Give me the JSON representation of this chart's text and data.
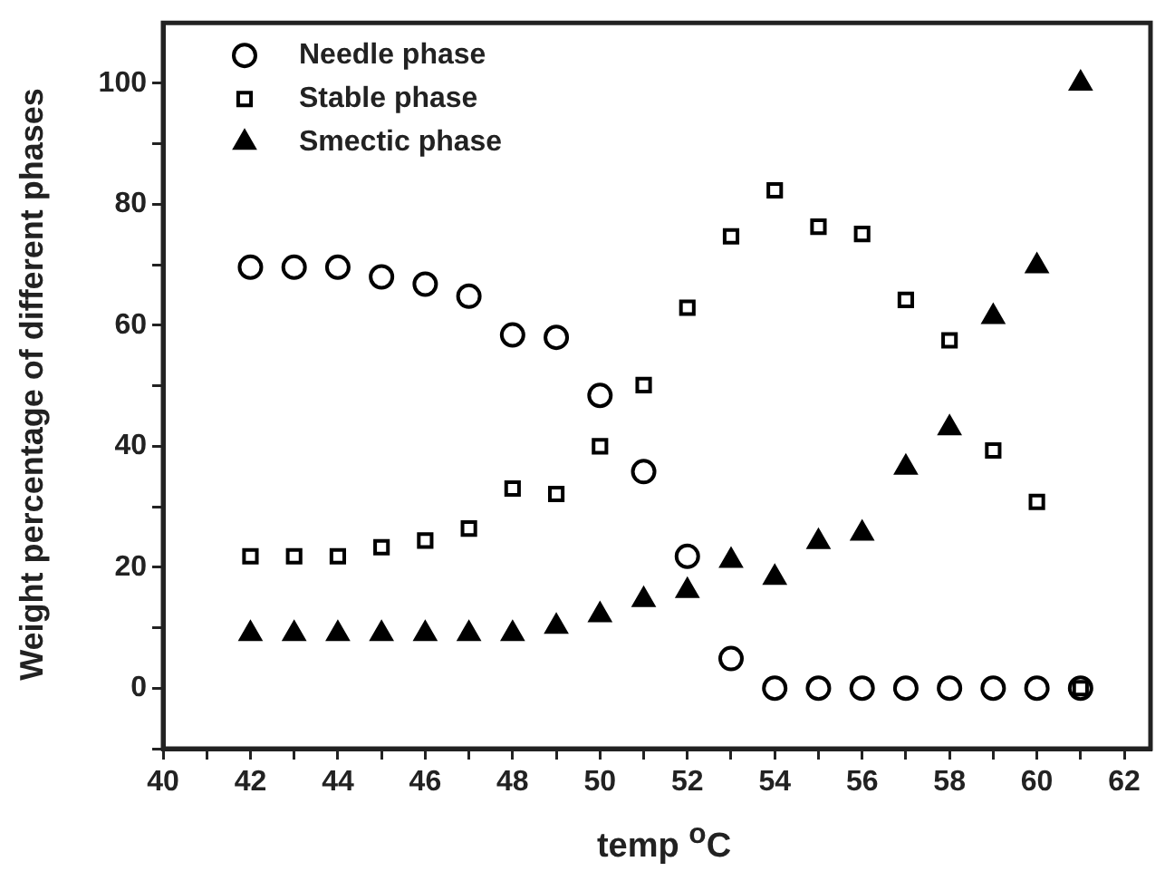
{
  "chart_data": {
    "type": "scatter",
    "xlabel": "temp $^{o}$C",
    "ylabel": "Weight percentage of different phases",
    "x": [
      42,
      43,
      44,
      45,
      46,
      47,
      48,
      49,
      50,
      51,
      52,
      53,
      54,
      55,
      56,
      57,
      58,
      59,
      60,
      61
    ],
    "series": [
      {
        "name": "Needle phase",
        "color": "#000000",
        "marker": "circle",
        "values": [
          69.6,
          69.6,
          69.6,
          68,
          66.8,
          64.8,
          58.4,
          58,
          48.4,
          35.8,
          21.8,
          4.9,
          0,
          0,
          0,
          0,
          0,
          0,
          0,
          0
        ]
      },
      {
        "name": "Stable phase",
        "color": "#000000",
        "marker": "square",
        "values": [
          21.8,
          21.8,
          21.8,
          23.3,
          24.4,
          26.4,
          33,
          32.1,
          40,
          50.1,
          62.9,
          74.7,
          82.3,
          76.3,
          75.1,
          64.2,
          57.5,
          39.3,
          30.8,
          0
        ]
      },
      {
        "name": "Smectic phase",
        "color": "#000000",
        "marker": "triangle",
        "values": [
          9,
          9,
          9,
          9,
          9,
          9,
          9,
          10.2,
          12.1,
          14.6,
          16.1,
          21.1,
          18.3,
          24.2,
          25.6,
          36.5,
          43,
          61.4,
          69.8,
          100
        ]
      }
    ],
    "xlim": [
      40,
      62.6
    ],
    "xticks": [
      40,
      {
        "value": 41,
        "label": null
      },
      42,
      {
        "value": 43,
        "label": null
      },
      44,
      {
        "value": 45,
        "label": null
      },
      46,
      {
        "value": 47,
        "label": null
      },
      48,
      {
        "value": 49,
        "label": null
      },
      50,
      {
        "value": 51,
        "label": null
      },
      52,
      {
        "value": 53,
        "label": null
      },
      54,
      {
        "value": 55,
        "label": null
      },
      56,
      {
        "value": 57,
        "label": null
      },
      58,
      {
        "value": 59,
        "label": null
      },
      60,
      {
        "value": 61,
        "label": null
      },
      62
    ],
    "ylim": [
      -10,
      110
    ],
    "yticks": [
      {
        "value": -10,
        "label": null
      },
      0,
      {
        "value": 10,
        "label": null
      },
      20,
      {
        "value": 30,
        "label": null
      },
      40,
      {
        "value": 50,
        "label": null
      },
      60,
      {
        "value": 70,
        "label": null
      },
      80,
      {
        "value": 90,
        "label": null
      },
      100
    ],
    "grid": false,
    "legend": "top left"
  }
}
